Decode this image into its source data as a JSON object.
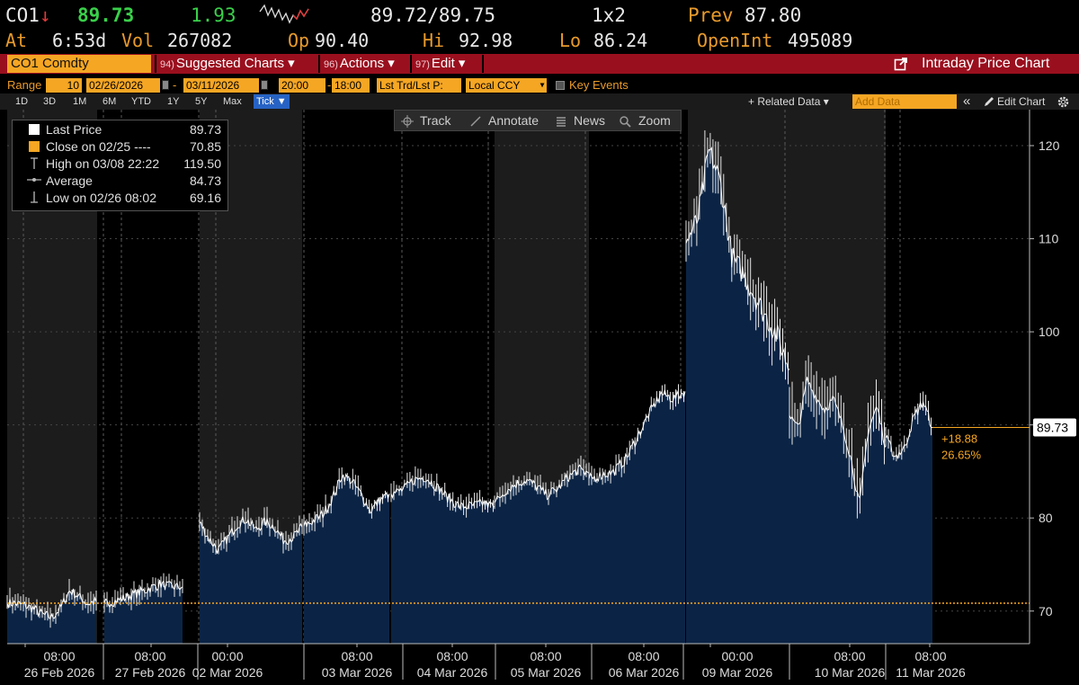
{
  "quote": {
    "ticker": "CO1",
    "arrow": "↓",
    "last": "89.73",
    "change": "1.93",
    "bid_ask": "89.72/89.75",
    "size": "1x2",
    "prev_label": "Prev",
    "prev": "87.80",
    "at_label": "At",
    "time": "6:53d",
    "vol_label": "Vol",
    "vol": "267082",
    "op_label": "Op",
    "op": "90.40",
    "hi_label": "Hi",
    "hi": "92.98",
    "lo_label": "Lo",
    "lo": "86.24",
    "openint_label": "OpenInt",
    "openint": "495089"
  },
  "toolbar": {
    "security": "CO1 Comdty",
    "suggested_num": "94)",
    "suggested": "Suggested Charts ▾",
    "actions_num": "96)",
    "actions": "Actions ▾",
    "edit_num": "97)",
    "edit": "Edit ▾",
    "title": "Intraday Price Chart"
  },
  "range_row": {
    "range_label": "Range",
    "period": "10",
    "start_date": "02/26/2026",
    "dash": "-",
    "end_date": "03/11/2026",
    "start_time": "20:00",
    "end_time": "18:00",
    "price_type": "Lst Trd/Lst P:",
    "currency": "Local CCY",
    "key_events": "Key Events"
  },
  "tabs": [
    {
      "label": "1D"
    },
    {
      "label": "3D"
    },
    {
      "label": "1M"
    },
    {
      "label": "6M"
    },
    {
      "label": "YTD"
    },
    {
      "label": "1Y"
    },
    {
      "label": "5Y"
    },
    {
      "label": "Max"
    },
    {
      "label": "Tick ▼"
    }
  ],
  "tools": {
    "related": "+ Related Data ▾",
    "add_data": "Add Data",
    "collapse": "«",
    "edit_chart": "Edit Chart",
    "track": "Track",
    "annotate": "Annotate",
    "news": "News",
    "zoom": "Zoom"
  },
  "legend": {
    "last_label": "Last Price",
    "last_value": "89.73",
    "close_label": "Close on 02/25 ----",
    "close_value": "70.85",
    "high_label": "High on 03/08 22:22",
    "high_value": "119.50",
    "avg_label": "Average",
    "avg_value": "84.73",
    "low_label": "Low on 02/26 08:02",
    "low_value": "69.16"
  },
  "annotations": {
    "last_price_tag": "89.73",
    "change_abs": "+18.88",
    "change_pct": "26.65%"
  },
  "colors": {
    "accent": "#f5a623",
    "bar_red": "#9a0f1e",
    "area": "#0b2445",
    "line": "#ffffff",
    "close_line": "#f5a623",
    "shade": "#1c1c1c"
  },
  "chart_data": {
    "type": "area",
    "ylim": [
      65,
      123
    ],
    "yticks": [
      70,
      80,
      90,
      100,
      110,
      120
    ],
    "reference_close": 70.85,
    "last": 89.73,
    "x_tick_labels": [
      {
        "time": "08:00",
        "date": "26 Feb 2026"
      },
      {
        "time": "08:00",
        "date": "27 Feb 2026"
      },
      {
        "time": "00:00",
        "date": "02 Mar 2026"
      },
      {
        "time": "08:00",
        "date": "03 Mar 2026"
      },
      {
        "time": "08:00",
        "date": "04 Mar 2026"
      },
      {
        "time": "08:00",
        "date": "05 Mar 2026"
      },
      {
        "time": "08:00",
        "date": "06 Mar 2026"
      },
      {
        "time": "00:00",
        "date": "09 Mar 2026"
      },
      {
        "time": "08:00",
        "date": "10 Mar 2026"
      },
      {
        "time": "08:00",
        "date": "11 Mar 2026"
      }
    ],
    "sessions": [
      {
        "day": "26 Feb",
        "points": [
          70.9,
          70.8,
          70.6,
          70.2,
          69.6,
          69.3,
          70.3,
          72.2,
          71.6,
          70.8,
          71.0
        ]
      },
      {
        "day": "27 Feb",
        "points": [
          70.8,
          71.1,
          71.5,
          71.9,
          72.4,
          72.9,
          72.6,
          72.6
        ]
      },
      {
        "day": "02 Mar",
        "points": [
          79.5,
          77.8,
          76.5,
          77.8,
          79.3,
          79.9,
          78.7,
          79.6,
          79.1,
          77.6,
          77.9,
          79.0
        ]
      },
      {
        "day": "03 Mar",
        "points": [
          79.1,
          79.7,
          80.4,
          82.1,
          84.6,
          84.0,
          82.6,
          80.8,
          81.9,
          82.6
        ]
      },
      {
        "day": "04 Mar",
        "points": [
          82.6,
          83.0,
          84.1,
          84.4,
          83.3,
          82.1,
          81.2,
          81.3,
          81.6,
          81.2
        ]
      },
      {
        "day": "05 Mar",
        "points": [
          81.6,
          82.9,
          83.6,
          84.1,
          83.4,
          82.5,
          83.1,
          84.4,
          85.2,
          84.8
        ]
      },
      {
        "day": "06 Mar",
        "points": [
          84.2,
          84.6,
          84.9,
          86.2,
          88.6,
          91.2,
          93.4,
          92.8,
          93.6
        ]
      },
      {
        "day": "09 Mar",
        "points": [
          109.5,
          112.0,
          119.5,
          116.0,
          108.0,
          106.2,
          103.8,
          101.5,
          99.4,
          96.0
        ]
      },
      {
        "day": "10 Mar",
        "points": [
          91.0,
          89.6,
          94.8,
          93.0,
          91.6,
          92.8,
          90.2,
          86.5,
          81.3,
          89.4,
          92.0,
          87.6
        ]
      },
      {
        "day": "11 Mar",
        "points": [
          88.6,
          86.6,
          87.5,
          90.8,
          92.5,
          89.73
        ]
      }
    ]
  }
}
